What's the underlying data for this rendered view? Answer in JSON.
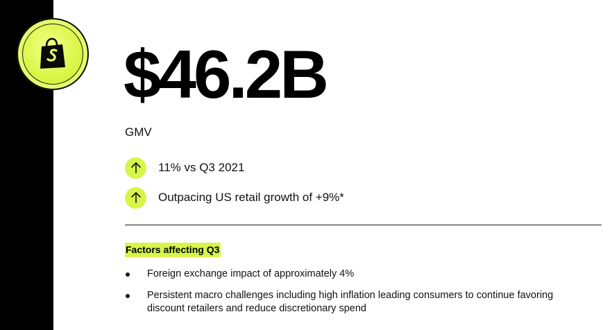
{
  "brand": {
    "logo_icon": "shopify-bag-icon",
    "accent_color": "#d7f54a",
    "sidebar_color": "#000000"
  },
  "metric": {
    "value": "$46.2B",
    "label": "GMV"
  },
  "stats": [
    {
      "icon": "arrow-up-icon",
      "text": "11% vs Q3 2021"
    },
    {
      "icon": "arrow-up-icon",
      "text": "Outpacing US retail growth of +9%*"
    }
  ],
  "factors": {
    "title": "Factors affecting Q3",
    "items": [
      "Foreign exchange impact of approximately 4%",
      "Persistent macro challenges including high inflation leading consumers to continue favoring discount retailers and reduce discretionary spend"
    ]
  }
}
